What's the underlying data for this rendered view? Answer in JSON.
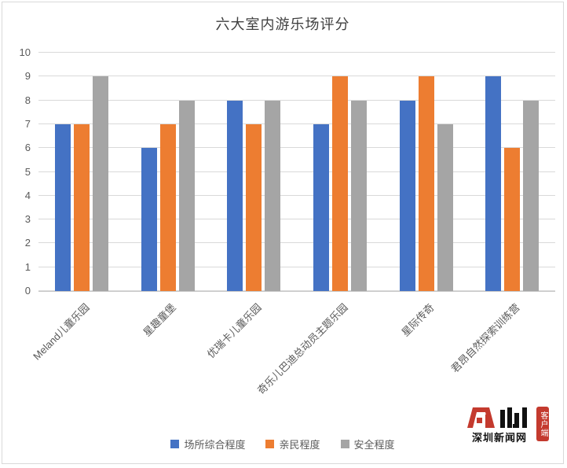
{
  "title": "六大室内游乐场评分",
  "chart_data": {
    "type": "bar",
    "title": "六大室内游乐场评分",
    "categories": [
      "Meland儿童乐园",
      "星趣童堡",
      "优瑞卡儿童乐园",
      "奇乐儿巴迪总动员主题乐园",
      "星际传奇",
      "君昂自然探索训练营"
    ],
    "series": [
      {
        "name": "场所综合程度",
        "color": "#4472C4",
        "values": [
          7,
          6,
          8,
          7,
          8,
          9
        ]
      },
      {
        "name": "亲民程度",
        "color": "#ED7D31",
        "values": [
          7,
          7,
          7,
          9,
          9,
          6
        ]
      },
      {
        "name": "安全程度",
        "color": "#A5A5A5",
        "values": [
          9,
          8,
          8,
          8,
          7,
          8
        ]
      }
    ],
    "xlabel": "",
    "ylabel": "",
    "ylim": [
      0,
      10
    ],
    "yticks": [
      0,
      1,
      2,
      3,
      4,
      5,
      6,
      7,
      8,
      9,
      10
    ],
    "grid": true,
    "legend_position": "bottom",
    "category_label_rotation_deg": -45
  },
  "colors": {
    "title_text": "#404040",
    "axis_text": "#595959",
    "gridline": "#D9D9D9",
    "axis_line": "#C6C6C6",
    "background": "#FFFFFF",
    "border": "#D9D9D9",
    "logo_red": "#C43A2E",
    "logo_black": "#111111"
  },
  "watermark": {
    "logo_text": "深圳新闻网",
    "badge_text": "客户端"
  }
}
